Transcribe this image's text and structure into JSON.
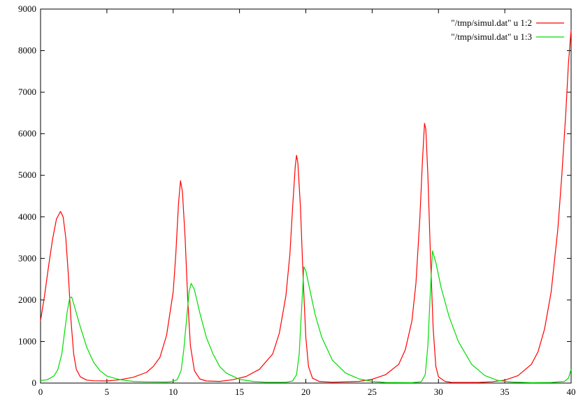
{
  "chart_data": {
    "type": "line",
    "title": "",
    "xlabel": "",
    "ylabel": "",
    "xlim": [
      0,
      40
    ],
    "ylim": [
      0,
      9000
    ],
    "x_ticks": [
      "0",
      "5",
      "10",
      "15",
      "20",
      "25",
      "30",
      "35",
      "40"
    ],
    "y_ticks": [
      "0",
      "1000",
      "2000",
      "3000",
      "4000",
      "5000",
      "6000",
      "7000",
      "8000",
      "9000"
    ],
    "grid": false,
    "legend_position": "top-right",
    "series": [
      {
        "name": "\"/tmp/simul.dat\" u 1:2",
        "color": "#ff0000",
        "points": [
          [
            0,
            1500
          ],
          [
            0.3,
            2100
          ],
          [
            0.6,
            2800
          ],
          [
            0.9,
            3450
          ],
          [
            1.2,
            3950
          ],
          [
            1.5,
            4130
          ],
          [
            1.7,
            4000
          ],
          [
            1.9,
            3500
          ],
          [
            2.1,
            2600
          ],
          [
            2.3,
            1500
          ],
          [
            2.5,
            700
          ],
          [
            2.7,
            330
          ],
          [
            3.0,
            150
          ],
          [
            3.5,
            70
          ],
          [
            4.0,
            55
          ],
          [
            5,
            50
          ],
          [
            6,
            80
          ],
          [
            7,
            140
          ],
          [
            8,
            260
          ],
          [
            8.5,
            400
          ],
          [
            9,
            620
          ],
          [
            9.5,
            1150
          ],
          [
            10,
            2200
          ],
          [
            10.2,
            3100
          ],
          [
            10.4,
            4300
          ],
          [
            10.55,
            4870
          ],
          [
            10.7,
            4600
          ],
          [
            10.9,
            3500
          ],
          [
            11.1,
            2000
          ],
          [
            11.3,
            900
          ],
          [
            11.6,
            300
          ],
          [
            12.0,
            100
          ],
          [
            12.5,
            50
          ],
          [
            13.5,
            40
          ],
          [
            14.5,
            80
          ],
          [
            15.5,
            160
          ],
          [
            16.5,
            330
          ],
          [
            17.5,
            700
          ],
          [
            18,
            1200
          ],
          [
            18.5,
            2100
          ],
          [
            18.8,
            3100
          ],
          [
            19.0,
            4200
          ],
          [
            19.2,
            5200
          ],
          [
            19.3,
            5480
          ],
          [
            19.4,
            5300
          ],
          [
            19.6,
            4200
          ],
          [
            19.8,
            2500
          ],
          [
            20.0,
            1100
          ],
          [
            20.2,
            400
          ],
          [
            20.5,
            120
          ],
          [
            21,
            40
          ],
          [
            22,
            20
          ],
          [
            24,
            40
          ],
          [
            25,
            90
          ],
          [
            26,
            200
          ],
          [
            27,
            450
          ],
          [
            27.5,
            800
          ],
          [
            28,
            1500
          ],
          [
            28.3,
            2400
          ],
          [
            28.6,
            4000
          ],
          [
            28.8,
            5400
          ],
          [
            28.95,
            6250
          ],
          [
            29.05,
            6100
          ],
          [
            29.2,
            5000
          ],
          [
            29.4,
            3000
          ],
          [
            29.6,
            1300
          ],
          [
            29.8,
            400
          ],
          [
            30.0,
            150
          ],
          [
            30.5,
            40
          ],
          [
            31,
            15
          ],
          [
            33,
            15
          ],
          [
            34,
            30
          ],
          [
            35,
            70
          ],
          [
            36,
            180
          ],
          [
            37,
            450
          ],
          [
            37.5,
            750
          ],
          [
            38,
            1300
          ],
          [
            38.5,
            2200
          ],
          [
            39,
            3700
          ],
          [
            39.3,
            5000
          ],
          [
            39.6,
            6500
          ],
          [
            39.8,
            7700
          ],
          [
            40,
            8500
          ]
        ]
      },
      {
        "name": "\"/tmp/simul.dat\" u 1:3",
        "color": "#00dd00",
        "points": [
          [
            0,
            60
          ],
          [
            0.5,
            80
          ],
          [
            1.0,
            170
          ],
          [
            1.3,
            320
          ],
          [
            1.6,
            700
          ],
          [
            1.8,
            1200
          ],
          [
            2.0,
            1700
          ],
          [
            2.2,
            2050
          ],
          [
            2.35,
            2070
          ],
          [
            2.6,
            1800
          ],
          [
            3.0,
            1350
          ],
          [
            3.5,
            850
          ],
          [
            4.0,
            500
          ],
          [
            4.5,
            290
          ],
          [
            5,
            170
          ],
          [
            6,
            80
          ],
          [
            7,
            40
          ],
          [
            8,
            30
          ],
          [
            9.5,
            25
          ],
          [
            10.0,
            40
          ],
          [
            10.3,
            80
          ],
          [
            10.6,
            300
          ],
          [
            10.8,
            800
          ],
          [
            11.0,
            1500
          ],
          [
            11.2,
            2200
          ],
          [
            11.35,
            2400
          ],
          [
            11.6,
            2250
          ],
          [
            12.0,
            1700
          ],
          [
            12.5,
            1100
          ],
          [
            13,
            700
          ],
          [
            13.5,
            400
          ],
          [
            14,
            240
          ],
          [
            15,
            90
          ],
          [
            16,
            40
          ],
          [
            17,
            20
          ],
          [
            18.5,
            20
          ],
          [
            19.0,
            50
          ],
          [
            19.3,
            200
          ],
          [
            19.5,
            700
          ],
          [
            19.7,
            1900
          ],
          [
            19.85,
            2800
          ],
          [
            20.0,
            2700
          ],
          [
            20.3,
            2250
          ],
          [
            20.7,
            1650
          ],
          [
            21.2,
            1100
          ],
          [
            22,
            550
          ],
          [
            23,
            240
          ],
          [
            24,
            100
          ],
          [
            25,
            40
          ],
          [
            26,
            15
          ],
          [
            28,
            10
          ],
          [
            28.7,
            30
          ],
          [
            29.0,
            200
          ],
          [
            29.2,
            900
          ],
          [
            29.4,
            2300
          ],
          [
            29.55,
            3180
          ],
          [
            29.8,
            2900
          ],
          [
            30.2,
            2300
          ],
          [
            30.8,
            1600
          ],
          [
            31.5,
            1000
          ],
          [
            32.5,
            450
          ],
          [
            33.5,
            180
          ],
          [
            34.5,
            60
          ],
          [
            35.5,
            25
          ],
          [
            37,
            10
          ],
          [
            38.5,
            15
          ],
          [
            39.5,
            40
          ],
          [
            39.8,
            120
          ],
          [
            40,
            330
          ]
        ]
      }
    ]
  }
}
